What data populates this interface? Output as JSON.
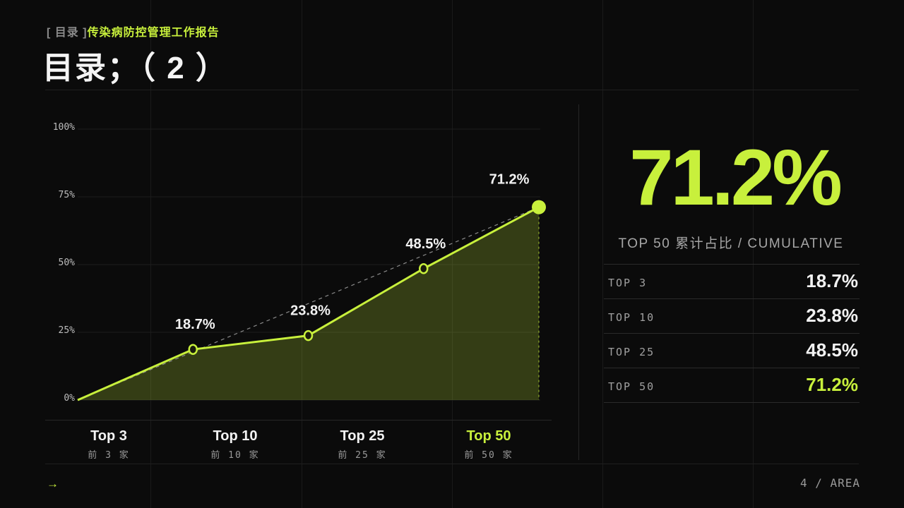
{
  "header": {
    "crumb_open": "[ 目录 ]",
    "crumb_name": "传染病防控管理工作报告",
    "title": "目录；（ 2 ）"
  },
  "colors": {
    "accent": "#c8f03c",
    "background": "#0b0b0b"
  },
  "chart_data": {
    "type": "area",
    "categories": [
      "Top 3",
      "Top 10",
      "Top 25",
      "Top 50"
    ],
    "category_sublabels": [
      "前 3 家",
      "前 10 家",
      "前 25 家",
      "前 50 家"
    ],
    "x": [
      0,
      1,
      2,
      3,
      4
    ],
    "values": [
      0,
      18.7,
      23.8,
      48.5,
      71.2
    ],
    "point_labels": [
      "18.7%",
      "23.8%",
      "48.5%",
      "71.2%"
    ],
    "yticks": [
      "0%",
      "25%",
      "50%",
      "75%",
      "100%"
    ],
    "ylim": [
      0,
      100
    ],
    "trend_line": "dashed linear 0 → 71.2",
    "grid": true
  },
  "summary": {
    "big_value": "71.2%",
    "caption": "TOP 50 累计占比 / CUMULATIVE",
    "rows": [
      {
        "label": "TOP 3",
        "value": "18.7%"
      },
      {
        "label": "TOP 10",
        "value": "23.8%"
      },
      {
        "label": "TOP 25",
        "value": "48.5%"
      },
      {
        "label": "TOP 50",
        "value": "71.2%"
      }
    ]
  },
  "footer": {
    "arrow": "→",
    "page": "4 / AREA"
  }
}
